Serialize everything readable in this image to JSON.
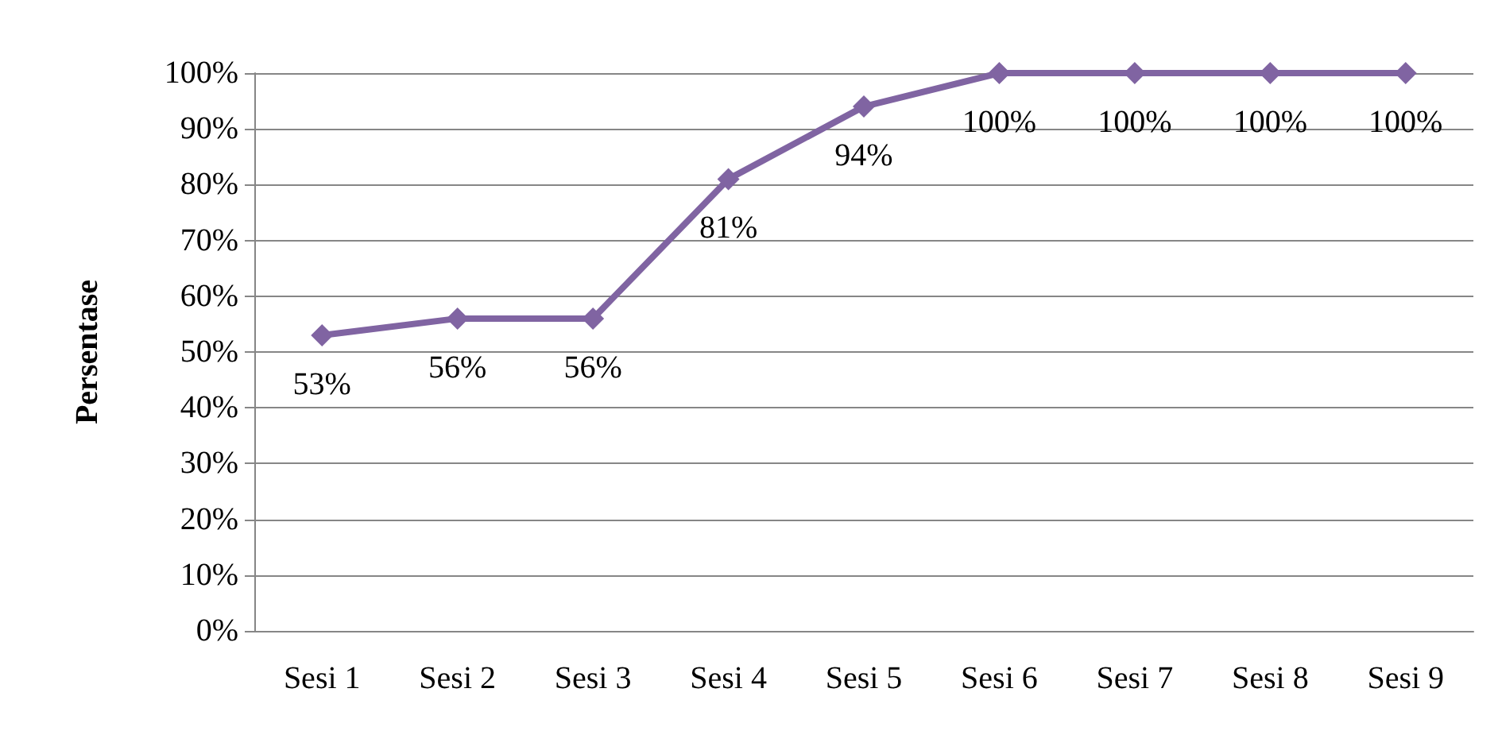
{
  "chart_data": {
    "type": "line",
    "ylabel": "Persentase",
    "categories": [
      "Sesi 1",
      "Sesi 2",
      "Sesi 3",
      "Sesi 4",
      "Sesi 5",
      "Sesi 6",
      "Sesi 7",
      "Sesi 8",
      "Sesi 9"
    ],
    "values": [
      53,
      56,
      56,
      81,
      94,
      100,
      100,
      100,
      100
    ],
    "value_labels": [
      "53%",
      "56%",
      "56%",
      "81%",
      "94%",
      "100%",
      "100%",
      "100%",
      "100%"
    ],
    "color": "#8064a2",
    "marker": "diamond",
    "line_style": "solid",
    "grid": "y",
    "ylim": [
      0,
      100
    ],
    "yticks": [
      {
        "value": 0,
        "label": "0%"
      },
      {
        "value": 10,
        "label": "10%"
      },
      {
        "value": 20,
        "label": "20%"
      },
      {
        "value": 30,
        "label": "30%"
      },
      {
        "value": 40,
        "label": "40%"
      },
      {
        "value": 50,
        "label": "50%"
      },
      {
        "value": 60,
        "label": "60%"
      },
      {
        "value": 70,
        "label": "70%"
      },
      {
        "value": 80,
        "label": "80%"
      },
      {
        "value": 90,
        "label": "90%"
      },
      {
        "value": 100,
        "label": "100%"
      }
    ]
  }
}
